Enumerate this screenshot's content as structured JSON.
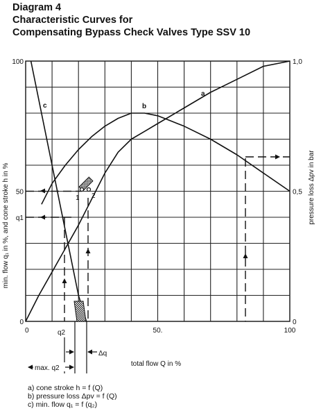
{
  "header": {
    "line1": "Diagram 4",
    "line2": "Characteristic Curves for",
    "line3": "Compensating Bypass Check Valves Type SSV 10"
  },
  "legend": [
    "a) cone stroke h = f (Q)",
    "b) pressure loss Δpv = f (Q)",
    "c) min. flow q₁ = f (q₂)"
  ],
  "chart_data": {
    "type": "line",
    "xlabel": "total flow Q in %",
    "ylabel_left": "min. flow q₁ in %, and cone stroke h in %",
    "ylabel_right": "pressure loss Δpv in bar",
    "xlim": [
      0,
      100
    ],
    "ylim_left": [
      0,
      100
    ],
    "ylim_right": [
      0,
      1.0
    ],
    "grid": true,
    "x_ticks": [
      {
        "value": 0,
        "label": "0"
      },
      {
        "value": 50,
        "label": "50."
      },
      {
        "value": 100,
        "label": "100"
      }
    ],
    "left_ticks": [
      {
        "value": 100,
        "label": "100"
      },
      {
        "value": 50,
        "label": "50"
      },
      {
        "value": 40,
        "label": "q1"
      },
      {
        "value": 0,
        "label": "0"
      }
    ],
    "right_ticks": [
      {
        "value": 1.0,
        "label": "1,0"
      },
      {
        "value": 0.5,
        "label": "0,5"
      },
      {
        "value": 0,
        "label": "0"
      }
    ],
    "series": [
      {
        "name": "a",
        "axis": "left",
        "x": [
          0,
          5,
          10,
          15,
          20,
          25,
          30,
          35,
          40,
          45,
          50,
          60,
          70,
          80,
          90,
          100
        ],
        "y": [
          0,
          10,
          19,
          28,
          37,
          47,
          57,
          65,
          70,
          73,
          76,
          82,
          88,
          93,
          98,
          100
        ]
      },
      {
        "name": "b",
        "axis": "right",
        "x": [
          6,
          10,
          15,
          20,
          25,
          30,
          35,
          40,
          45,
          50,
          55,
          60,
          70,
          80,
          90,
          100
        ],
        "y": [
          0.45,
          0.53,
          0.6,
          0.66,
          0.71,
          0.75,
          0.78,
          0.8,
          0.8,
          0.79,
          0.77,
          0.75,
          0.7,
          0.64,
          0.57,
          0.5
        ]
      },
      {
        "name": "c",
        "axis": "left",
        "x": [
          2,
          20,
          23
        ],
        "y": [
          100,
          10,
          0
        ]
      }
    ],
    "annotations": [
      "b",
      "a",
      "c",
      "1",
      "2",
      "q2",
      "Δq",
      "max. q2"
    ]
  }
}
